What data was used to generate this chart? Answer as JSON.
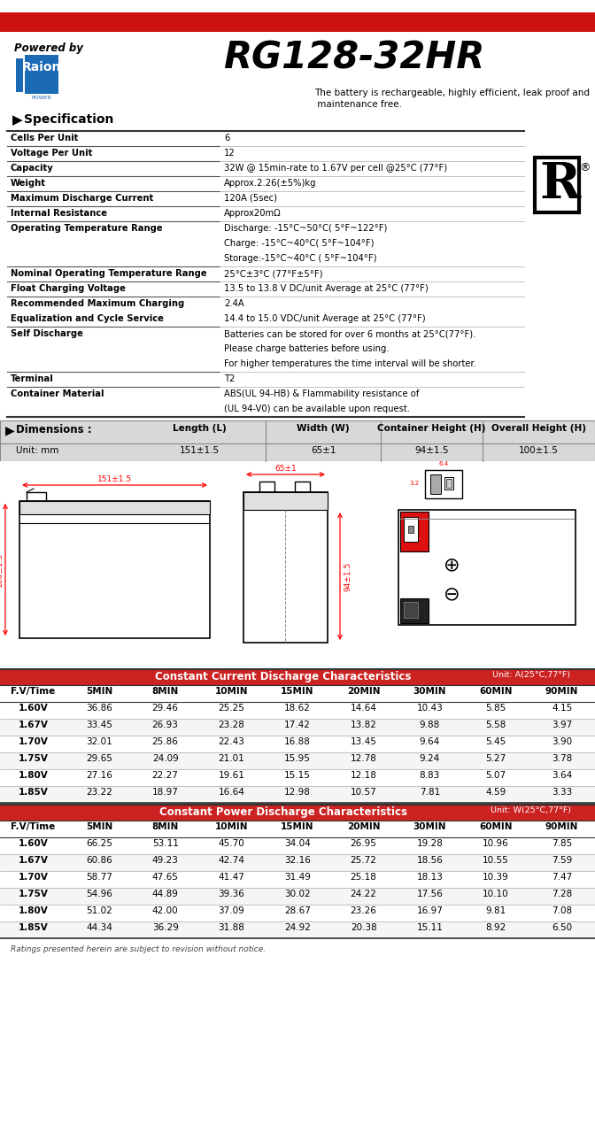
{
  "title": "RG128-32HR",
  "powered_by": "Powered by",
  "description": "The battery is rechargeable, highly efficient, leak proof and\n maintenance free.",
  "spec_section": "Specification",
  "spec_rows": [
    [
      "Cells Per Unit",
      "6",
      1
    ],
    [
      "Voltage Per Unit",
      "12",
      1
    ],
    [
      "Capacity",
      "32W @ 15min-rate to 1.67V per cell @25°C (77°F)",
      1
    ],
    [
      "Weight",
      "Approx.2.26(±5%)kg",
      1
    ],
    [
      "Maximum Discharge Current",
      "120A (5sec)",
      1
    ],
    [
      "Internal Resistance",
      "Approx20mΩ",
      1
    ],
    [
      "Operating Temperature Range",
      "Discharge: -15°C~50°C( 5°F~122°F)\nCharge: -15°C~40°C( 5°F~104°F)\nStorage:-15°C~40°C ( 5°F~104°F)",
      3
    ],
    [
      "Nominal Operating Temperature Range",
      "25°C±3°C (77°F±5°F)",
      1
    ],
    [
      "Float Charging Voltage",
      "13.5 to 13.8 V DC/unit Average at 25°C (77°F)",
      1
    ],
    [
      "Recommended Maximum Charging\nEqualization and Cycle Service",
      "2.4A\n14.4 to 15.0 VDC/unit Average at 25°C (77°F)",
      2
    ],
    [
      "Self Discharge",
      "Batteries can be stored for over 6 months at 25°C(77°F).\nPlease charge batteries before using.\nFor higher temperatures the time interval will be shorter.",
      3
    ],
    [
      "Terminal",
      "T2",
      1
    ],
    [
      "Container Material",
      "ABS(UL 94-HB) & Flammability resistance of\n(UL 94-V0) can be available upon request.",
      2
    ]
  ],
  "dim_headers": [
    "Dimensions :",
    "Length (L)",
    "Width (W)",
    "Container Height (H)",
    "Overall Height (H)"
  ],
  "dim_unit": "Unit: mm",
  "dim_values": [
    "151±1.5",
    "65±1",
    "94±1.5",
    "100±1.5"
  ],
  "cc_title": "Constant Current Discharge Characteristics",
  "cc_unit": "Unit: A(25°C,77°F)",
  "cc_headers": [
    "F.V/Time",
    "5MIN",
    "8MIN",
    "10MIN",
    "15MIN",
    "20MIN",
    "30MIN",
    "60MIN",
    "90MIN"
  ],
  "cc_data": [
    [
      "1.60V",
      "36.86",
      "29.46",
      "25.25",
      "18.62",
      "14.64",
      "10.43",
      "5.85",
      "4.15"
    ],
    [
      "1.67V",
      "33.45",
      "26.93",
      "23.28",
      "17.42",
      "13.82",
      "9.88",
      "5.58",
      "3.97"
    ],
    [
      "1.70V",
      "32.01",
      "25.86",
      "22.43",
      "16.88",
      "13.45",
      "9.64",
      "5.45",
      "3.90"
    ],
    [
      "1.75V",
      "29.65",
      "24.09",
      "21.01",
      "15.95",
      "12.78",
      "9.24",
      "5.27",
      "3.78"
    ],
    [
      "1.80V",
      "27.16",
      "22.27",
      "19.61",
      "15.15",
      "12.18",
      "8.83",
      "5.07",
      "3.64"
    ],
    [
      "1.85V",
      "23.22",
      "18.97",
      "16.64",
      "12.98",
      "10.57",
      "7.81",
      "4.59",
      "3.33"
    ]
  ],
  "cp_title": "Constant Power Discharge Characteristics",
  "cp_unit": "Unit: W(25°C,77°F)",
  "cp_headers": [
    "F.V/Time",
    "5MIN",
    "8MIN",
    "10MIN",
    "15MIN",
    "20MIN",
    "30MIN",
    "60MIN",
    "90MIN"
  ],
  "cp_data": [
    [
      "1.60V",
      "66.25",
      "53.11",
      "45.70",
      "34.04",
      "26.95",
      "19.28",
      "10.96",
      "7.85"
    ],
    [
      "1.67V",
      "60.86",
      "49.23",
      "42.74",
      "32.16",
      "25.72",
      "18.56",
      "10.55",
      "7.59"
    ],
    [
      "1.70V",
      "58.77",
      "47.65",
      "41.47",
      "31.49",
      "25.18",
      "18.13",
      "10.39",
      "7.47"
    ],
    [
      "1.75V",
      "54.96",
      "44.89",
      "39.36",
      "30.02",
      "24.22",
      "17.56",
      "10.10",
      "7.28"
    ],
    [
      "1.80V",
      "51.02",
      "42.00",
      "37.09",
      "28.67",
      "23.26",
      "16.97",
      "9.81",
      "7.08"
    ],
    [
      "1.85V",
      "44.34",
      "36.29",
      "31.88",
      "24.92",
      "20.38",
      "15.11",
      "8.92",
      "6.50"
    ]
  ],
  "footer": "Ratings presented herein are subject to revision without notice.",
  "red_color": "#cc1111",
  "table_red_bg": "#cc2222",
  "table_alt_bg": "#f5f5f5",
  "dim_bg": "#d8d8d8"
}
